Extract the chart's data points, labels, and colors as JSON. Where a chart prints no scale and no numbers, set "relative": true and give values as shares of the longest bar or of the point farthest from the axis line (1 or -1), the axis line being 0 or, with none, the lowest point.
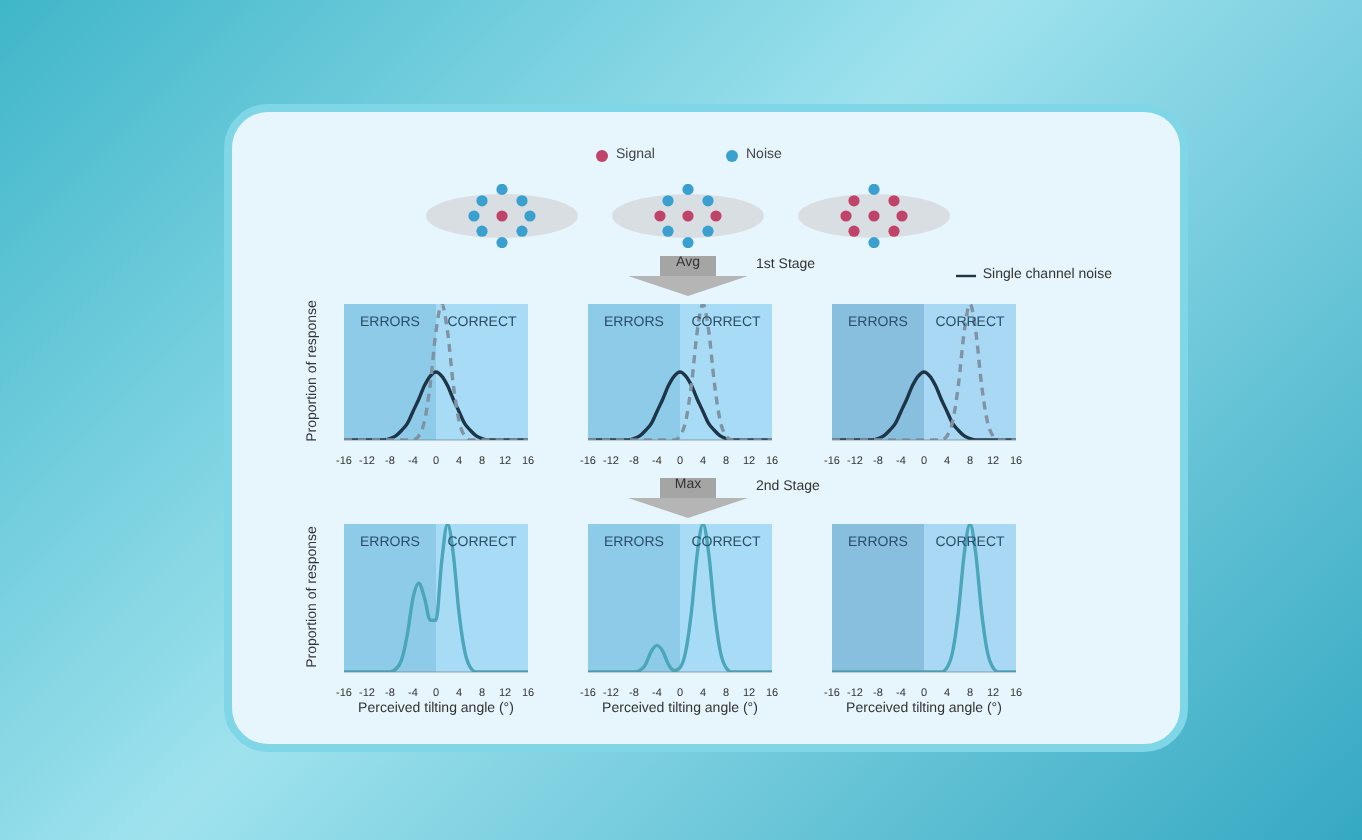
{
  "chart_data": [
    {
      "type": "other",
      "annotations": [
        "Signal",
        "Noise",
        "Avg",
        "1st Stage",
        "Max",
        "2nd Stage"
      ]
    },
    {
      "type": "line",
      "ylabel": "Proportion of response",
      "relative": true,
      "x": [
        -16,
        -15,
        -14,
        -13,
        -12,
        -11,
        -10,
        -9,
        -8,
        -7,
        -6,
        -5,
        -4,
        -3,
        -2,
        -1,
        0,
        1,
        2,
        3,
        4,
        5,
        6,
        7,
        8,
        9,
        10,
        11,
        12,
        13,
        14,
        15,
        16
      ],
      "xlim": [
        -16,
        16
      ],
      "xticks": [
        -16,
        -12,
        -8,
        -4,
        0,
        4,
        8,
        12,
        16
      ],
      "marker": "none",
      "grid": false,
      "bands": [
        {
          "axis": "x",
          "from": -16,
          "to": 0,
          "label": "ERRORS",
          "color": "#8ecbe8"
        },
        {
          "axis": "x",
          "from": 0,
          "to": 16,
          "label": "CORRECT",
          "color": "#a8dcf6"
        }
      ],
      "series": [
        {
          "color": "#1d3547",
          "line_style": "solid",
          "values": [
            0,
            0,
            0,
            0,
            0,
            0,
            0,
            0,
            0.01,
            0.03,
            0.07,
            0.12,
            0.21,
            0.3,
            0.4,
            0.47,
            0.5,
            0.47,
            0.4,
            0.3,
            0.21,
            0.12,
            0.07,
            0.03,
            0.01,
            0,
            0,
            0,
            0,
            0,
            0,
            0,
            0
          ]
        },
        {
          "color": "#7f93a3",
          "line_style": "dashed",
          "values": [
            0,
            0,
            0,
            0,
            0,
            0,
            0,
            0,
            0,
            0,
            0,
            0,
            0,
            0.03,
            0.14,
            0.41,
            0.8,
            1,
            0.8,
            0.41,
            0.14,
            0.03,
            0,
            0,
            0,
            0,
            0,
            0,
            0,
            0,
            0,
            0,
            0
          ]
        }
      ]
    },
    {
      "type": "line",
      "relative": true,
      "x": [
        -16,
        -15,
        -14,
        -13,
        -12,
        -11,
        -10,
        -9,
        -8,
        -7,
        -6,
        -5,
        -4,
        -3,
        -2,
        -1,
        0,
        1,
        2,
        3,
        4,
        5,
        6,
        7,
        8,
        9,
        10,
        11,
        12,
        13,
        14,
        15,
        16
      ],
      "xlim": [
        -16,
        16
      ],
      "xticks": [
        -16,
        -12,
        -8,
        -4,
        0,
        4,
        8,
        12,
        16
      ],
      "marker": "none",
      "grid": false,
      "bands": [
        {
          "axis": "x",
          "from": -16,
          "to": 0,
          "label": "ERRORS",
          "color": "#8ecbe8"
        },
        {
          "axis": "x",
          "from": 0,
          "to": 16,
          "label": "CORRECT",
          "color": "#a8dcf6"
        }
      ],
      "series": [
        {
          "color": "#1d3547",
          "line_style": "solid",
          "values": [
            0,
            0,
            0,
            0,
            0,
            0,
            0,
            0,
            0.01,
            0.03,
            0.07,
            0.12,
            0.21,
            0.3,
            0.4,
            0.47,
            0.5,
            0.47,
            0.4,
            0.3,
            0.21,
            0.12,
            0.07,
            0.03,
            0.01,
            0,
            0,
            0,
            0,
            0,
            0,
            0,
            0
          ]
        },
        {
          "color": "#7f93a3",
          "line_style": "dashed",
          "values": [
            0,
            0,
            0,
            0,
            0,
            0,
            0,
            0,
            0,
            0,
            0,
            0,
            0,
            0,
            0,
            0,
            0.03,
            0.14,
            0.41,
            0.8,
            1,
            0.8,
            0.41,
            0.14,
            0.03,
            0,
            0,
            0,
            0,
            0,
            0,
            0,
            0
          ]
        }
      ]
    },
    {
      "type": "line",
      "relative": true,
      "legend": "top right",
      "x": [
        -16,
        -15,
        -14,
        -13,
        -12,
        -11,
        -10,
        -9,
        -8,
        -7,
        -6,
        -5,
        -4,
        -3,
        -2,
        -1,
        0,
        1,
        2,
        3,
        4,
        5,
        6,
        7,
        8,
        9,
        10,
        11,
        12,
        13,
        14,
        15,
        16
      ],
      "xlim": [
        -16,
        16
      ],
      "xticks": [
        -16,
        -12,
        -8,
        -4,
        0,
        4,
        8,
        12,
        16
      ],
      "marker": "none",
      "grid": false,
      "bands": [
        {
          "axis": "x",
          "from": -16,
          "to": 0,
          "label": "ERRORS",
          "color": "#88bfdf"
        },
        {
          "axis": "x",
          "from": 0,
          "to": 16,
          "label": "CORRECT",
          "color": "#a8d8f4"
        }
      ],
      "series": [
        {
          "name": "Single channel noise",
          "color": "#1d3547",
          "line_style": "solid",
          "values": [
            0,
            0,
            0,
            0,
            0,
            0,
            0,
            0,
            0.01,
            0.03,
            0.07,
            0.12,
            0.21,
            0.3,
            0.4,
            0.47,
            0.5,
            0.47,
            0.4,
            0.3,
            0.21,
            0.12,
            0.07,
            0.03,
            0.01,
            0,
            0,
            0,
            0,
            0,
            0,
            0,
            0
          ]
        },
        {
          "color": "#7f93a3",
          "line_style": "dashed",
          "values": [
            0,
            0,
            0,
            0,
            0,
            0,
            0,
            0,
            0,
            0,
            0,
            0,
            0,
            0,
            0,
            0,
            0,
            0,
            0,
            0,
            0.03,
            0.14,
            0.41,
            0.8,
            1,
            0.8,
            0.41,
            0.14,
            0.03,
            0,
            0,
            0,
            0
          ]
        }
      ]
    },
    {
      "type": "line",
      "ylabel": "Proportion of response",
      "xlabel": "Perceived tilting angle (°)",
      "relative": true,
      "x": [
        -16,
        -15,
        -14,
        -13,
        -12,
        -11,
        -10,
        -9,
        -8,
        -7,
        -6,
        -5,
        -4,
        -3,
        -2,
        -1,
        0,
        1,
        2,
        3,
        4,
        5,
        6,
        7,
        8,
        9,
        10,
        11,
        12,
        13,
        14,
        15,
        16
      ],
      "xlim": [
        -16,
        16
      ],
      "xticks": [
        -16,
        -12,
        -8,
        -4,
        0,
        4,
        8,
        12,
        16
      ],
      "marker": "none",
      "grid": false,
      "bands": [
        {
          "axis": "x",
          "from": -16,
          "to": 0,
          "label": "ERRORS",
          "color": "#8ecbe8"
        },
        {
          "axis": "x",
          "from": 0,
          "to": 16,
          "label": "CORRECT",
          "color": "#a8dcf6"
        }
      ],
      "series": [
        {
          "color": "#4aa6b8",
          "line_style": "solid",
          "values": [
            0,
            0,
            0,
            0,
            0,
            0,
            0,
            0,
            0,
            0.02,
            0.08,
            0.25,
            0.5,
            0.6,
            0.5,
            0.35,
            0.35,
            0.75,
            1,
            0.8,
            0.4,
            0.14,
            0.03,
            0,
            0,
            0,
            0,
            0,
            0,
            0,
            0,
            0,
            0
          ]
        }
      ]
    },
    {
      "type": "line",
      "xlabel": "Perceived tilting angle (°)",
      "relative": true,
      "x": [
        -16,
        -15,
        -14,
        -13,
        -12,
        -11,
        -10,
        -9,
        -8,
        -7,
        -6,
        -5,
        -4,
        -3,
        -2,
        -1,
        0,
        1,
        2,
        3,
        4,
        5,
        6,
        7,
        8,
        9,
        10,
        11,
        12,
        13,
        14,
        15,
        16
      ],
      "xlim": [
        -16,
        16
      ],
      "xticks": [
        -16,
        -12,
        -8,
        -4,
        0,
        4,
        8,
        12,
        16
      ],
      "marker": "none",
      "grid": false,
      "bands": [
        {
          "axis": "x",
          "from": -16,
          "to": 0,
          "label": "ERRORS",
          "color": "#8ecbe8"
        },
        {
          "axis": "x",
          "from": 0,
          "to": 16,
          "label": "CORRECT",
          "color": "#a8dcf6"
        }
      ],
      "series": [
        {
          "color": "#4aa6b8",
          "line_style": "solid",
          "values": [
            0,
            0,
            0,
            0,
            0,
            0,
            0,
            0,
            0,
            0.01,
            0.05,
            0.14,
            0.18,
            0.14,
            0.05,
            0.01,
            0.03,
            0.14,
            0.41,
            0.8,
            1,
            0.8,
            0.41,
            0.14,
            0.03,
            0,
            0,
            0,
            0,
            0,
            0,
            0,
            0
          ]
        }
      ]
    },
    {
      "type": "line",
      "xlabel": "Perceived tilting angle (°)",
      "relative": true,
      "x": [
        -16,
        -15,
        -14,
        -13,
        -12,
        -11,
        -10,
        -9,
        -8,
        -7,
        -6,
        -5,
        -4,
        -3,
        -2,
        -1,
        0,
        1,
        2,
        3,
        4,
        5,
        6,
        7,
        8,
        9,
        10,
        11,
        12,
        13,
        14,
        15,
        16
      ],
      "xlim": [
        -16,
        16
      ],
      "xticks": [
        -16,
        -12,
        -8,
        -4,
        0,
        4,
        8,
        12,
        16
      ],
      "marker": "none",
      "grid": false,
      "bands": [
        {
          "axis": "x",
          "from": -16,
          "to": 0,
          "label": "ERRORS",
          "color": "#88bfdf"
        },
        {
          "axis": "x",
          "from": 0,
          "to": 16,
          "label": "CORRECT",
          "color": "#a8d8f4"
        }
      ],
      "series": [
        {
          "color": "#4aa6b8",
          "line_style": "solid",
          "values": [
            0,
            0,
            0,
            0,
            0,
            0,
            0,
            0,
            0,
            0,
            0,
            0,
            0,
            0,
            0,
            0,
            0,
            0,
            0,
            0,
            0.03,
            0.14,
            0.41,
            0.8,
            1,
            0.8,
            0.41,
            0.14,
            0.03,
            0,
            0,
            0,
            0
          ]
        }
      ]
    }
  ]
}
